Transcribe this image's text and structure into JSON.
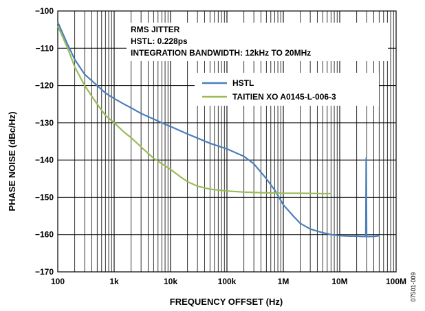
{
  "chart_data": {
    "type": "line",
    "xlabel": "FREQUENCY OFFSET (Hz)",
    "ylabel": "PHASE NOISE (dBc/Hz)",
    "xscale": "log",
    "xlim": [
      100,
      100000000
    ],
    "ylim": [
      -170,
      -100
    ],
    "grid": true,
    "x_tick_labels": [
      "100",
      "1k",
      "10k",
      "100k",
      "1M",
      "10M",
      "100M"
    ],
    "y_tick_labels": [
      "−100",
      "−110",
      "−120",
      "−130",
      "−140",
      "−150",
      "−160",
      "−170"
    ],
    "annotation": [
      "RMS JITTER",
      "HSTL: 0.228ps",
      "INTEGRATION BANDWIDTH: 12kHz TO 20MHz"
    ],
    "legend_position": "top-right",
    "figure_id": "07501-009",
    "series": [
      {
        "name": "HSTL",
        "color": "#4a7ebb",
        "x": [
          100,
          150,
          200,
          300,
          500,
          700,
          1000,
          1500,
          2000,
          3000,
          5000,
          7000,
          10000,
          20000,
          50000,
          100000,
          200000,
          300000,
          500000,
          700000,
          1000000,
          1500000,
          2000000,
          3000000,
          5000000,
          7000000,
          10000000,
          15000000,
          20000000,
          25000000,
          29000000,
          29500000,
          30000000,
          30500000,
          31000000,
          40000000,
          50000000
        ],
        "y": [
          -103,
          -109,
          -113,
          -117,
          -120,
          -122,
          -123.5,
          -125,
          -126,
          -127.5,
          -129,
          -130,
          -131,
          -133,
          -135.5,
          -137,
          -139,
          -141,
          -145,
          -148,
          -152,
          -155,
          -157,
          -158.5,
          -159.5,
          -160,
          -160.3,
          -160.4,
          -160.4,
          -160.5,
          -160.5,
          -139.5,
          -160.5,
          -160.5,
          -160.5,
          -160.5,
          -160.3
        ]
      },
      {
        "name": "TAITIEN XO A0145-L-006-3",
        "color": "#9bbb59",
        "x": [
          100,
          150,
          200,
          300,
          500,
          700,
          1000,
          1500,
          2000,
          3000,
          5000,
          7000,
          10000,
          15000,
          20000,
          30000,
          50000,
          100000,
          200000,
          500000,
          1000000,
          2000000,
          5000000,
          7000000
        ],
        "y": [
          -104,
          -110,
          -115,
          -120,
          -125,
          -128,
          -130,
          -132.5,
          -134,
          -136.5,
          -139.5,
          -141,
          -142.5,
          -144.5,
          -145.8,
          -147,
          -147.8,
          -148.3,
          -148.6,
          -148.8,
          -148.9,
          -148.9,
          -149,
          -149
        ]
      }
    ]
  }
}
